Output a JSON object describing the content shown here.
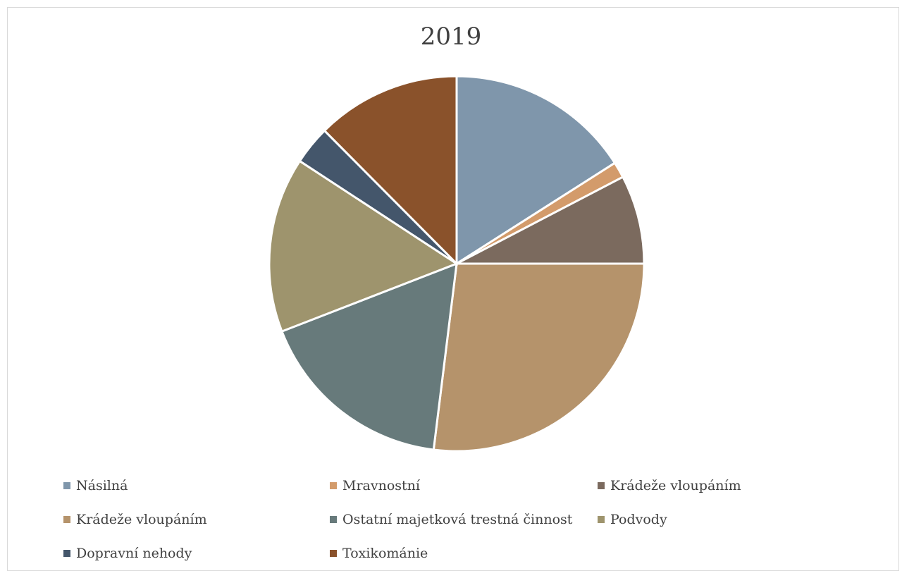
{
  "chart_data": {
    "type": "pie",
    "title": "2019",
    "categories": [
      "Násilná",
      "Mravnostní",
      "Krádeže vloupáním",
      "Krádeže vloupáním",
      "Ostatní majetková trestná činnost",
      "Podvody",
      "Dopravní nehody",
      "Toxikománie"
    ],
    "values": [
      16.3,
      1.4,
      7.8,
      27.5,
      17.5,
      15.4,
      3.4,
      12.7
    ],
    "unit": "%",
    "colors": [
      "#7f96ab",
      "#d39b6b",
      "#7b6a5e",
      "#b5936b",
      "#677a7b",
      "#9e946d",
      "#44566b",
      "#8a522b"
    ],
    "legend_position": "bottom",
    "grid": false
  }
}
